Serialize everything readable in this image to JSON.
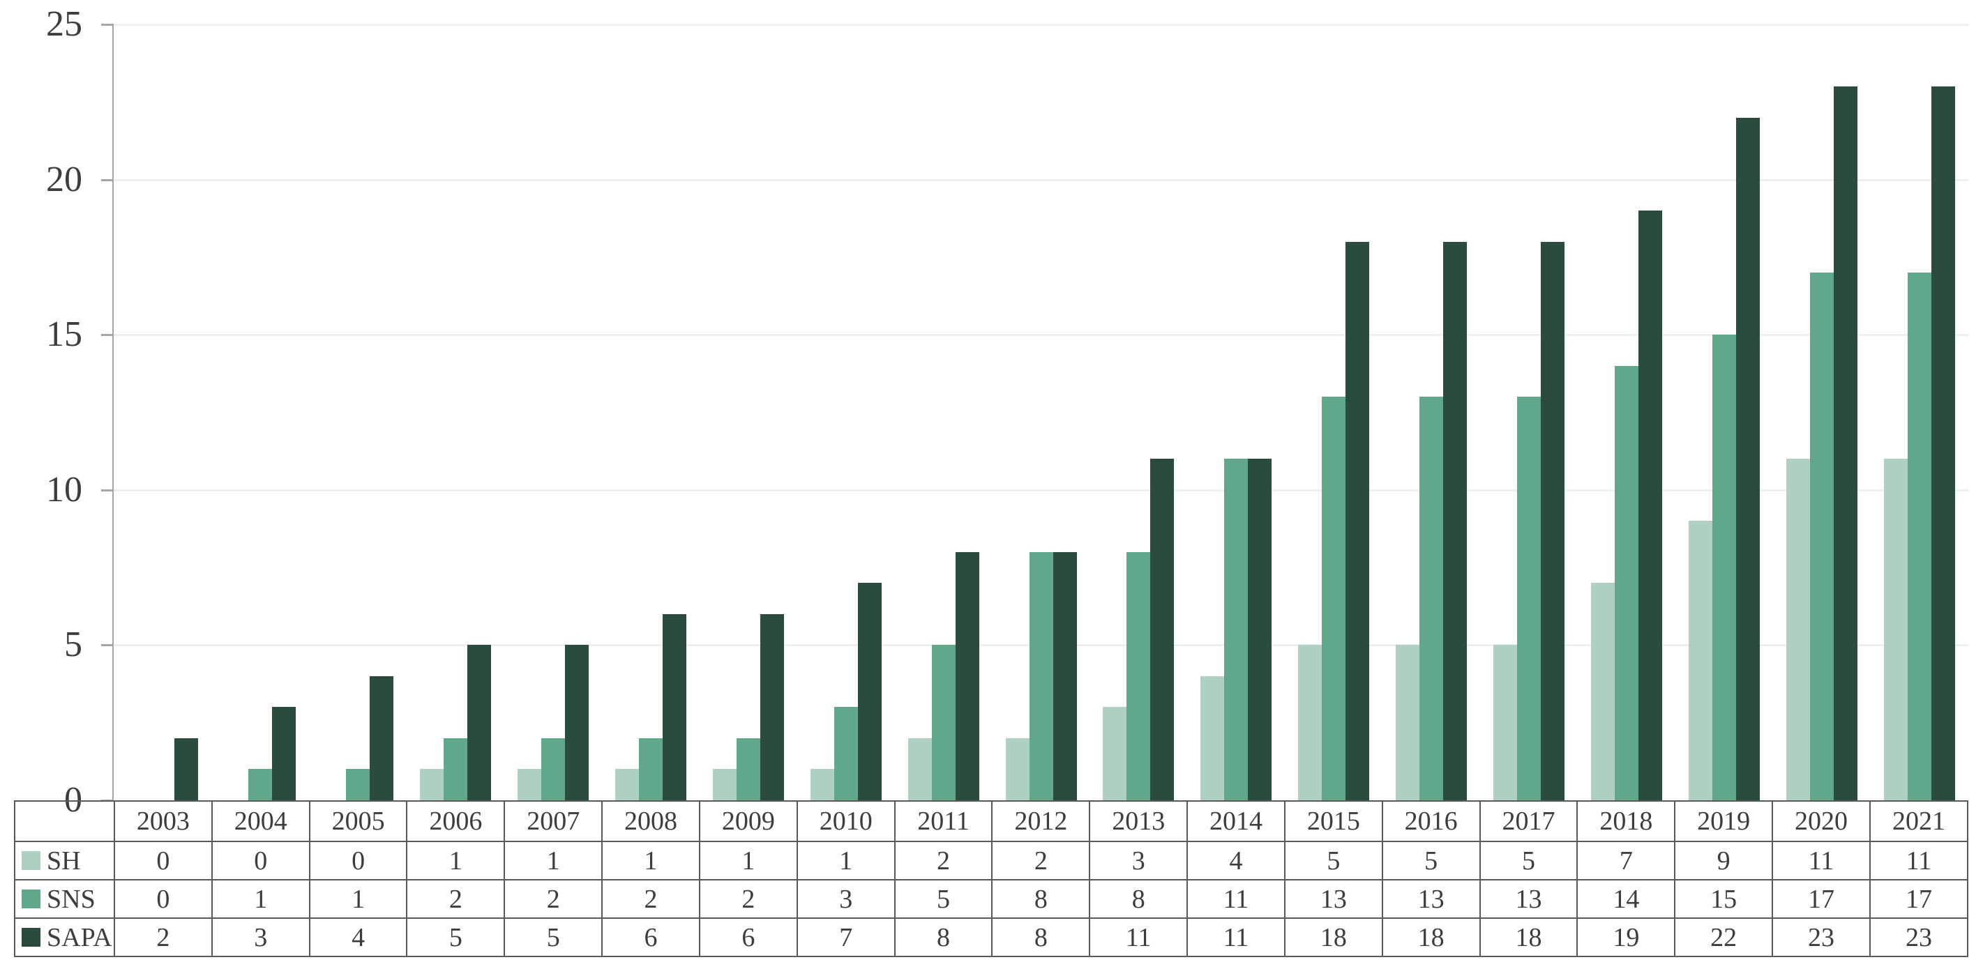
{
  "chart_data": {
    "type": "bar",
    "title": "",
    "xlabel": "",
    "ylabel": "",
    "categories": [
      "2003",
      "2004",
      "2005",
      "2006",
      "2007",
      "2008",
      "2009",
      "2010",
      "2011",
      "2012",
      "2013",
      "2014",
      "2015",
      "2016",
      "2017",
      "2018",
      "2019",
      "2020",
      "2021"
    ],
    "series": [
      {
        "name": "SH",
        "color": "#b0d1c1",
        "values": [
          0,
          0,
          0,
          1,
          1,
          1,
          1,
          1,
          2,
          2,
          3,
          4,
          5,
          5,
          5,
          7,
          9,
          11,
          11
        ]
      },
      {
        "name": "SNS",
        "color": "#61a88b",
        "values": [
          0,
          1,
          1,
          2,
          2,
          2,
          2,
          3,
          5,
          8,
          8,
          11,
          13,
          13,
          13,
          14,
          15,
          17,
          17
        ]
      },
      {
        "name": "SAPA",
        "color": "#2b4c3d",
        "values": [
          2,
          3,
          4,
          5,
          5,
          6,
          6,
          7,
          8,
          8,
          11,
          11,
          18,
          18,
          18,
          19,
          22,
          23,
          23
        ]
      }
    ],
    "ylim": [
      0,
      25
    ],
    "ytick_step": 5,
    "ytick_labels": [
      "0",
      "5",
      "10",
      "15",
      "20",
      "25"
    ],
    "grid": true,
    "legend_position": "table-left-column",
    "colors": {
      "grid_line": "#efefef",
      "axis_line": "#a6a6a6",
      "table_border": "#595959",
      "text": "#3d3d3d",
      "background": "#ffffff"
    }
  }
}
